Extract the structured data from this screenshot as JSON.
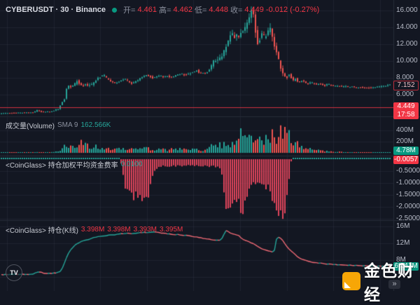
{
  "header": {
    "symbol_title": "CYBERUSDT · 30 · Binance",
    "ohlc": {
      "open_label": "开=",
      "open": "4.461",
      "high_label": "高=",
      "high": "4.462",
      "low_label": "低=",
      "low": "4.448",
      "close_label": "收=",
      "close": "4.449",
      "change": "-0.012 (-0.27%)"
    }
  },
  "price_axis": {
    "labels": [
      "16.000",
      "14.000",
      "12.000",
      "10.000",
      "8.000",
      "6.000"
    ],
    "last_visible_price": "7.152",
    "current_price": "4.449",
    "countdown": "17:58"
  },
  "volume_pane": {
    "title": "成交量(Volume)",
    "sma_label": "SMA 9",
    "sma_value": "162.566K",
    "axis": [
      "400M",
      "200M"
    ],
    "current_value": "4.78M"
  },
  "funding_pane": {
    "title": "<CoinGlass> 持仓加权平均资金费率",
    "value": "0.0100",
    "axis": [
      "-0.5000",
      "-1.0000",
      "-1.5000",
      "-2.0000",
      "-2.5000"
    ],
    "current_value": "-0.0057"
  },
  "oi_pane": {
    "title": "<CoinGlass> 持仓(K线)",
    "values": [
      "3.398M",
      "3.398M",
      "3.393M",
      "3.395M"
    ],
    "axis": [
      "16M",
      "12M",
      "8M"
    ],
    "current_value": "6.541M"
  },
  "watermark": {
    "text": "金色财经"
  },
  "tv_logo_text": "TV",
  "goto_realtime_label": "»",
  "colors": {
    "background": "#131722",
    "grid": "rgba(130,140,165,0.10)",
    "separator": "#262b38",
    "candle_up": "#26a69a",
    "candle_down": "#ef5350",
    "funding_fill": "#e0455c",
    "oi_up": "#26a69a",
    "oi_down": "#ef6a75",
    "price_line": "#f23645",
    "label_red_bg": "#f23645",
    "label_green_bg": "#089981"
  },
  "chart_data": {
    "type": "candlestick-multi-pane",
    "timeframe_minutes": 30,
    "panes": [
      {
        "name": "price",
        "y_range_visible": [
          3.6,
          16.6
        ],
        "grid_values": [
          16,
          14,
          12,
          10,
          8,
          6
        ],
        "current_price": 4.449,
        "last_visible_close": 7.152
      },
      {
        "name": "volume",
        "unit": "M",
        "grid_values": [
          400,
          200
        ],
        "current": 4.78
      },
      {
        "name": "funding_rate",
        "grid_values": [
          -0.5,
          -1.0,
          -1.5,
          -2.0,
          -2.5
        ],
        "current": -0.0057,
        "plateau_value": 0.01
      },
      {
        "name": "open_interest",
        "unit": "M",
        "grid_values": [
          16,
          12,
          8
        ],
        "current": 6.541
      }
    ],
    "price_anchors": [
      [
        0,
        3.75
      ],
      [
        30,
        3.85
      ],
      [
        50,
        3.9
      ],
      [
        55,
        4.15
      ],
      [
        62,
        3.95
      ],
      [
        75,
        4.0
      ],
      [
        85,
        4.3
      ],
      [
        90,
        5.0
      ],
      [
        95,
        5.6
      ],
      [
        98,
        7.2
      ],
      [
        100,
        7.0
      ],
      [
        105,
        6.9
      ],
      [
        110,
        7.4
      ],
      [
        113,
        7.8
      ],
      [
        116,
        7.1
      ],
      [
        120,
        7.0
      ],
      [
        125,
        7.2
      ],
      [
        130,
        7.1
      ],
      [
        135,
        7.3
      ],
      [
        140,
        7.8
      ],
      [
        145,
        8.1
      ],
      [
        150,
        8.35
      ],
      [
        155,
        7.9
      ],
      [
        160,
        7.6
      ],
      [
        165,
        7.4
      ],
      [
        170,
        7.5
      ],
      [
        175,
        7.7
      ],
      [
        180,
        7.9
      ],
      [
        185,
        7.6
      ],
      [
        190,
        7.3
      ],
      [
        195,
        7.5
      ],
      [
        200,
        7.8
      ],
      [
        205,
        8.1
      ],
      [
        210,
        8.35
      ],
      [
        215,
        8.2
      ],
      [
        220,
        8.0
      ],
      [
        225,
        8.15
      ],
      [
        230,
        8.3
      ],
      [
        235,
        8.1
      ],
      [
        240,
        8.25
      ],
      [
        245,
        8.1
      ],
      [
        250,
        8.2
      ],
      [
        255,
        8.35
      ],
      [
        260,
        8.5
      ],
      [
        265,
        8.35
      ],
      [
        270,
        8.45
      ],
      [
        275,
        8.6
      ],
      [
        280,
        8.75
      ],
      [
        283,
        8.9
      ],
      [
        286,
        8.6
      ],
      [
        290,
        8.5
      ],
      [
        295,
        8.55
      ],
      [
        300,
        8.8
      ],
      [
        305,
        9.6
      ],
      [
        308,
        10.1
      ],
      [
        312,
        9.9
      ],
      [
        316,
        10.3
      ],
      [
        320,
        10.8
      ],
      [
        324,
        11.6
      ],
      [
        328,
        12.4
      ],
      [
        332,
        13.1
      ],
      [
        335,
        13.3
      ],
      [
        338,
        12.7
      ],
      [
        341,
        13.2
      ],
      [
        344,
        12.9
      ],
      [
        347,
        13.4
      ],
      [
        350,
        13.7
      ],
      [
        353,
        14.2
      ],
      [
        356,
        14.8
      ],
      [
        359,
        15.3
      ],
      [
        362,
        16.25
      ],
      [
        364,
        15.5
      ],
      [
        366,
        14.2
      ],
      [
        368,
        12.8
      ],
      [
        370,
        12.1
      ],
      [
        373,
        12.6
      ],
      [
        376,
        13.2
      ],
      [
        379,
        12.9
      ],
      [
        382,
        13.1
      ],
      [
        385,
        13.6
      ],
      [
        388,
        14.0
      ],
      [
        390,
        13.4
      ],
      [
        392,
        12.6
      ],
      [
        394,
        11.8
      ],
      [
        396,
        11.2
      ],
      [
        398,
        10.8
      ],
      [
        400,
        10.2
      ],
      [
        402,
        9.4
      ],
      [
        404,
        8.8
      ],
      [
        406,
        8.5
      ],
      [
        408,
        8.2
      ],
      [
        410,
        7.9
      ],
      [
        412,
        8.1
      ],
      [
        415,
        8.35
      ],
      [
        418,
        8.0
      ],
      [
        421,
        7.7
      ],
      [
        424,
        7.9
      ],
      [
        427,
        7.6
      ],
      [
        430,
        7.5
      ],
      [
        434,
        7.7
      ],
      [
        438,
        7.4
      ],
      [
        442,
        7.3
      ],
      [
        446,
        7.5
      ],
      [
        450,
        7.3
      ],
      [
        454,
        7.2
      ],
      [
        458,
        7.35
      ],
      [
        462,
        7.2
      ],
      [
        466,
        7.1
      ],
      [
        470,
        7.25
      ],
      [
        475,
        7.1
      ],
      [
        480,
        7.0
      ],
      [
        485,
        7.1
      ],
      [
        490,
        6.95
      ],
      [
        495,
        7.0
      ],
      [
        500,
        6.9
      ],
      [
        505,
        6.95
      ],
      [
        510,
        6.85
      ],
      [
        515,
        6.9
      ],
      [
        520,
        6.8
      ],
      [
        525,
        6.85
      ],
      [
        530,
        6.8
      ],
      [
        535,
        6.85
      ],
      [
        540,
        6.9
      ],
      [
        545,
        6.95
      ],
      [
        550,
        7.0
      ],
      [
        554,
        7.05
      ],
      [
        558,
        7.15
      ]
    ],
    "volume_anchors": [
      [
        0,
        4
      ],
      [
        40,
        5
      ],
      [
        55,
        12
      ],
      [
        70,
        6
      ],
      [
        85,
        30
      ],
      [
        90,
        90
      ],
      [
        95,
        175
      ],
      [
        100,
        120
      ],
      [
        105,
        80
      ],
      [
        110,
        100
      ],
      [
        114,
        150
      ],
      [
        118,
        220
      ],
      [
        122,
        160
      ],
      [
        126,
        90
      ],
      [
        130,
        60
      ],
      [
        136,
        120
      ],
      [
        140,
        90
      ],
      [
        146,
        60
      ],
      [
        150,
        110
      ],
      [
        156,
        70
      ],
      [
        162,
        50
      ],
      [
        168,
        60
      ],
      [
        174,
        80
      ],
      [
        180,
        100
      ],
      [
        186,
        70
      ],
      [
        190,
        130
      ],
      [
        196,
        80
      ],
      [
        202,
        60
      ],
      [
        208,
        90
      ],
      [
        214,
        70
      ],
      [
        220,
        55
      ],
      [
        226,
        75
      ],
      [
        232,
        60
      ],
      [
        238,
        45
      ],
      [
        244,
        65
      ],
      [
        250,
        55
      ],
      [
        256,
        70
      ],
      [
        262,
        85
      ],
      [
        268,
        55
      ],
      [
        274,
        70
      ],
      [
        280,
        90
      ],
      [
        286,
        60
      ],
      [
        292,
        55
      ],
      [
        298,
        80
      ],
      [
        304,
        140
      ],
      [
        308,
        110
      ],
      [
        312,
        150
      ],
      [
        316,
        120
      ],
      [
        320,
        160
      ],
      [
        324,
        190
      ],
      [
        328,
        150
      ],
      [
        332,
        200
      ],
      [
        336,
        170
      ],
      [
        340,
        220
      ],
      [
        345,
        510
      ],
      [
        348,
        260
      ],
      [
        352,
        300
      ],
      [
        356,
        360
      ],
      [
        360,
        320
      ],
      [
        364,
        340
      ],
      [
        368,
        300
      ],
      [
        372,
        250
      ],
      [
        376,
        230
      ],
      [
        380,
        330
      ],
      [
        384,
        280
      ],
      [
        388,
        360
      ],
      [
        392,
        300
      ],
      [
        396,
        280
      ],
      [
        400,
        360
      ],
      [
        404,
        320
      ],
      [
        408,
        380
      ],
      [
        412,
        330
      ],
      [
        416,
        250
      ],
      [
        420,
        190
      ],
      [
        424,
        150
      ],
      [
        428,
        120
      ],
      [
        432,
        100
      ],
      [
        436,
        85
      ],
      [
        440,
        70
      ],
      [
        446,
        55
      ],
      [
        452,
        45
      ],
      [
        458,
        38
      ],
      [
        464,
        30
      ],
      [
        470,
        26
      ],
      [
        476,
        22
      ],
      [
        482,
        18
      ],
      [
        490,
        14
      ],
      [
        498,
        12
      ],
      [
        506,
        10
      ],
      [
        514,
        9
      ],
      [
        522,
        8
      ],
      [
        530,
        7
      ],
      [
        540,
        6
      ],
      [
        550,
        5
      ],
      [
        558,
        5
      ]
    ],
    "funding_anchors": [
      [
        0,
        0.01
      ],
      [
        170,
        0.01
      ],
      [
        173,
        -0.3
      ],
      [
        176,
        -0.9
      ],
      [
        180,
        -1.3
      ],
      [
        185,
        -1.45
      ],
      [
        190,
        -1.5
      ],
      [
        195,
        -1.55
      ],
      [
        200,
        -1.6
      ],
      [
        205,
        -1.68
      ],
      [
        209,
        -1.6
      ],
      [
        212,
        -1.3
      ],
      [
        215,
        -0.9
      ],
      [
        219,
        -0.5
      ],
      [
        223,
        -0.36
      ],
      [
        230,
        -0.3
      ],
      [
        245,
        -0.27
      ],
      [
        260,
        -0.28
      ],
      [
        275,
        -0.26
      ],
      [
        290,
        -0.28
      ],
      [
        305,
        -0.3
      ],
      [
        313,
        -0.33
      ],
      [
        316,
        -0.6
      ],
      [
        319,
        -1.3
      ],
      [
        322,
        -1.9
      ],
      [
        325,
        -2.05
      ],
      [
        328,
        -1.95
      ],
      [
        331,
        -1.7
      ],
      [
        334,
        -1.5
      ],
      [
        337,
        -1.55
      ],
      [
        340,
        -1.8
      ],
      [
        343,
        -2.0
      ],
      [
        346,
        -2.07
      ],
      [
        349,
        -1.95
      ],
      [
        352,
        -1.75
      ],
      [
        355,
        -1.4
      ],
      [
        358,
        -1.1
      ],
      [
        361,
        -1.0
      ],
      [
        365,
        -1.02
      ],
      [
        369,
        -1.06
      ],
      [
        373,
        -1.1
      ],
      [
        377,
        -1.14
      ],
      [
        381,
        -1.18
      ],
      [
        384,
        -1.1
      ],
      [
        387,
        -1.5
      ],
      [
        390,
        -2.0
      ],
      [
        393,
        -2.2
      ],
      [
        396,
        -2.3
      ],
      [
        399,
        -2.25
      ],
      [
        402,
        -2.35
      ],
      [
        405,
        -2.3
      ],
      [
        407,
        -2.1
      ],
      [
        409,
        -1.7
      ],
      [
        411,
        -1.1
      ],
      [
        413,
        -0.5
      ],
      [
        415,
        -0.1
      ],
      [
        418,
        -0.006
      ],
      [
        558,
        -0.006
      ]
    ],
    "oi_anchors": [
      [
        0,
        4.6
      ],
      [
        30,
        4.65
      ],
      [
        45,
        4.7
      ],
      [
        52,
        5.1
      ],
      [
        56,
        5.3
      ],
      [
        60,
        4.95
      ],
      [
        70,
        4.9
      ],
      [
        80,
        5.0
      ],
      [
        86,
        5.4
      ],
      [
        90,
        6.8
      ],
      [
        94,
        8.6
      ],
      [
        98,
        10.0
      ],
      [
        103,
        11.0
      ],
      [
        108,
        11.8
      ],
      [
        114,
        12.3
      ],
      [
        120,
        12.6
      ],
      [
        126,
        12.9
      ],
      [
        133,
        13.3
      ],
      [
        140,
        13.5
      ],
      [
        148,
        13.7
      ],
      [
        156,
        13.9
      ],
      [
        164,
        14.0
      ],
      [
        172,
        14.15
      ],
      [
        180,
        14.3
      ],
      [
        188,
        14.25
      ],
      [
        196,
        14.4
      ],
      [
        204,
        14.5
      ],
      [
        212,
        14.45
      ],
      [
        218,
        14.6
      ],
      [
        224,
        14.5
      ],
      [
        232,
        14.35
      ],
      [
        240,
        14.15
      ],
      [
        248,
        13.95
      ],
      [
        254,
        14.05
      ],
      [
        260,
        13.8
      ],
      [
        266,
        13.9
      ],
      [
        272,
        13.6
      ],
      [
        278,
        13.45
      ],
      [
        284,
        13.3
      ],
      [
        290,
        13.1
      ],
      [
        296,
        12.95
      ],
      [
        302,
        12.8
      ],
      [
        308,
        12.7
      ],
      [
        314,
        12.65
      ],
      [
        318,
        13.5
      ],
      [
        321,
        15.1
      ],
      [
        324,
        14.8
      ],
      [
        327,
        14.4
      ],
      [
        331,
        14.2
      ],
      [
        335,
        14.0
      ],
      [
        339,
        13.9
      ],
      [
        343,
        13.3
      ],
      [
        347,
        12.8
      ],
      [
        351,
        12.5
      ],
      [
        355,
        12.3
      ],
      [
        360,
        11.9
      ],
      [
        364,
        11.6
      ],
      [
        368,
        11.1
      ],
      [
        372,
        10.7
      ],
      [
        376,
        10.5
      ],
      [
        380,
        10.3
      ],
      [
        384,
        10.1
      ],
      [
        388,
        9.9
      ],
      [
        391,
        10.3
      ],
      [
        394,
        12.9
      ],
      [
        397,
        13.4
      ],
      [
        400,
        13.1
      ],
      [
        403,
        12.6
      ],
      [
        406,
        11.9
      ],
      [
        409,
        11.2
      ],
      [
        412,
        10.6
      ],
      [
        416,
        10.0
      ],
      [
        420,
        9.4
      ],
      [
        424,
        8.8
      ],
      [
        428,
        8.4
      ],
      [
        432,
        8.1
      ],
      [
        436,
        7.9
      ],
      [
        440,
        7.7
      ],
      [
        446,
        7.5
      ],
      [
        452,
        7.35
      ],
      [
        458,
        7.25
      ],
      [
        466,
        7.1
      ],
      [
        474,
        7.0
      ],
      [
        482,
        6.9
      ],
      [
        490,
        6.85
      ],
      [
        498,
        6.8
      ],
      [
        506,
        6.75
      ],
      [
        514,
        6.7
      ],
      [
        522,
        6.68
      ],
      [
        530,
        6.63
      ],
      [
        538,
        6.6
      ],
      [
        546,
        6.56
      ],
      [
        552,
        6.55
      ],
      [
        558,
        6.54
      ]
    ]
  }
}
